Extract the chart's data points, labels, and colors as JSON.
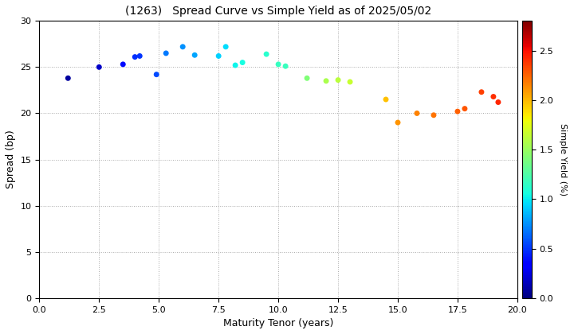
{
  "title": "(1263)   Spread Curve vs Simple Yield as of 2025/05/02",
  "xlabel": "Maturity Tenor (years)",
  "ylabel": "Spread (bp)",
  "colorbar_label": "Simple Yield (%)",
  "xlim": [
    0.0,
    20.0
  ],
  "ylim": [
    0,
    30
  ],
  "xticks": [
    0.0,
    2.5,
    5.0,
    7.5,
    10.0,
    12.5,
    15.0,
    17.5,
    20.0
  ],
  "yticks": [
    0,
    5,
    10,
    15,
    20,
    25,
    30
  ],
  "colorbar_ticks": [
    0.0,
    0.5,
    1.0,
    1.5,
    2.0,
    2.5
  ],
  "points": [
    {
      "tenor": 1.2,
      "spread": 23.8,
      "yield": 0.08
    },
    {
      "tenor": 2.5,
      "spread": 25.0,
      "yield": 0.18
    },
    {
      "tenor": 3.5,
      "spread": 25.3,
      "yield": 0.38
    },
    {
      "tenor": 4.0,
      "spread": 26.1,
      "yield": 0.48
    },
    {
      "tenor": 4.2,
      "spread": 26.2,
      "yield": 0.5
    },
    {
      "tenor": 4.9,
      "spread": 24.2,
      "yield": 0.55
    },
    {
      "tenor": 5.3,
      "spread": 26.5,
      "yield": 0.68
    },
    {
      "tenor": 6.0,
      "spread": 27.2,
      "yield": 0.75
    },
    {
      "tenor": 6.5,
      "spread": 26.3,
      "yield": 0.8
    },
    {
      "tenor": 7.5,
      "spread": 26.2,
      "yield": 0.92
    },
    {
      "tenor": 7.8,
      "spread": 27.2,
      "yield": 0.96
    },
    {
      "tenor": 8.2,
      "spread": 25.2,
      "yield": 1.02
    },
    {
      "tenor": 8.5,
      "spread": 25.5,
      "yield": 1.05
    },
    {
      "tenor": 9.5,
      "spread": 26.4,
      "yield": 1.12
    },
    {
      "tenor": 10.0,
      "spread": 25.3,
      "yield": 1.16
    },
    {
      "tenor": 10.3,
      "spread": 25.1,
      "yield": 1.18
    },
    {
      "tenor": 11.2,
      "spread": 23.8,
      "yield": 1.42
    },
    {
      "tenor": 12.0,
      "spread": 23.5,
      "yield": 1.56
    },
    {
      "tenor": 12.5,
      "spread": 23.6,
      "yield": 1.61
    },
    {
      "tenor": 13.0,
      "spread": 23.4,
      "yield": 1.66
    },
    {
      "tenor": 14.5,
      "spread": 21.5,
      "yield": 1.97
    },
    {
      "tenor": 15.0,
      "spread": 19.0,
      "yield": 2.1
    },
    {
      "tenor": 15.8,
      "spread": 20.0,
      "yield": 2.16
    },
    {
      "tenor": 16.5,
      "spread": 19.8,
      "yield": 2.2
    },
    {
      "tenor": 17.5,
      "spread": 20.2,
      "yield": 2.26
    },
    {
      "tenor": 17.8,
      "spread": 20.5,
      "yield": 2.29
    },
    {
      "tenor": 18.5,
      "spread": 22.3,
      "yield": 2.36
    },
    {
      "tenor": 19.0,
      "spread": 21.8,
      "yield": 2.41
    },
    {
      "tenor": 19.2,
      "spread": 21.2,
      "yield": 2.43
    }
  ],
  "cmap": "jet",
  "vmin": 0.0,
  "vmax": 2.8,
  "marker_size": 25,
  "background_color": "#ffffff",
  "grid_color": "#aaaaaa",
  "grid_style": "dotted",
  "title_fontsize": 10,
  "axis_fontsize": 9,
  "tick_fontsize": 8,
  "colorbar_fontsize": 8,
  "colorbar_label_fontsize": 8
}
